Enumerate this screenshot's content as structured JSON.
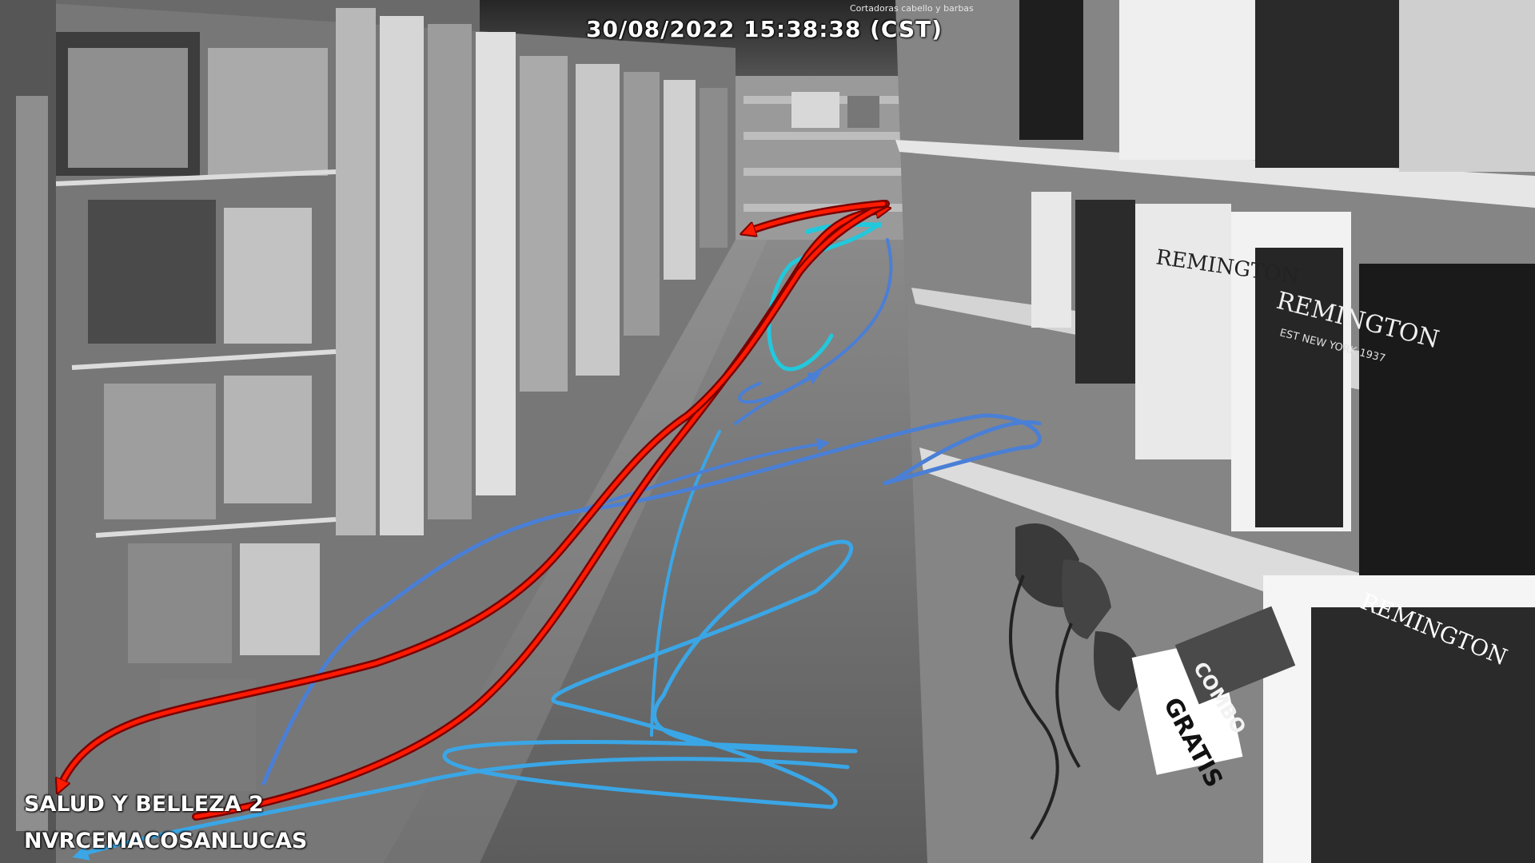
{
  "osd": {
    "timestamp": "30/08/2022 15:38:38 (CST)",
    "zone": "SALUD Y BELLEZA 2",
    "store": "NVRCEMACOSANLUCAS"
  },
  "signage": {
    "ceiling": "Cortadoras cabello y barbas",
    "brand": "REMINGTON",
    "brand_sub": "EST NEW YORK 1937",
    "combo": "COMBO",
    "gratis": "GRATIS"
  },
  "colors": {
    "track_red": "#ff1a00",
    "track_blue": "#4a7fd6",
    "track_light_blue": "#3aa6e6",
    "track_cyan": "#22c8dc"
  },
  "icons": [
    "hair-dryer-icon",
    "flat-iron-icon",
    "shelf-icon"
  ]
}
